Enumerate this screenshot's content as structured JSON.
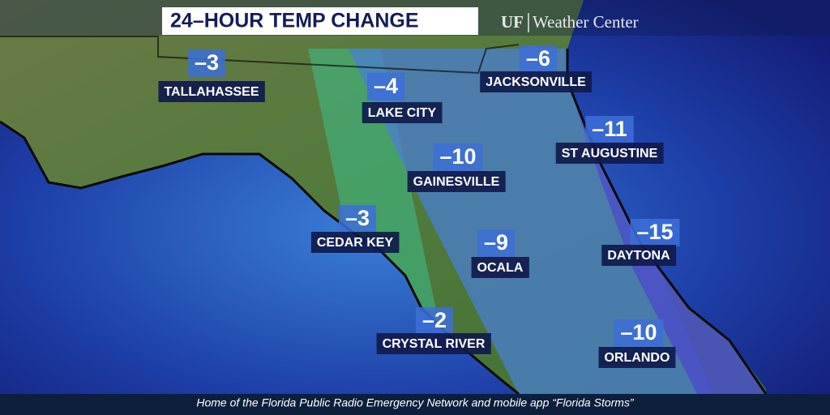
{
  "header": {
    "title": "24–HOUR TEMP CHANGE",
    "logo_mark": "UF",
    "logo_text": "Weather Center"
  },
  "cities": [
    {
      "name": "TALLAHASSEE",
      "change": "–3"
    },
    {
      "name": "JACKSONVILLE",
      "change": "–6"
    },
    {
      "name": "LAKE CITY",
      "change": "–4"
    },
    {
      "name": "ST AUGUSTINE",
      "change": "–11"
    },
    {
      "name": "GAINESVILLE",
      "change": "–10"
    },
    {
      "name": "CEDAR KEY",
      "change": "–3"
    },
    {
      "name": "DAYTONA",
      "change": "–15"
    },
    {
      "name": "OCALA",
      "change": "–9"
    },
    {
      "name": "CRYSTAL RIVER",
      "change": "–2"
    },
    {
      "name": "ORLANDO",
      "change": "–10"
    }
  ],
  "footer": {
    "text": "Home of the Florida Public Radio Emergency Network and mobile app “Florida Storms”"
  }
}
